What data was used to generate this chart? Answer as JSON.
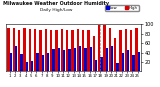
{
  "title": "Milwaukee Weather Outdoor Humidity",
  "subtitle": "Daily High/Low",
  "legend_labels": [
    "High",
    "Low"
  ],
  "bar_color_high": "#dd0000",
  "bar_color_low": "#0000cc",
  "background_color": "#ffffff",
  "ylim": [
    0,
    100
  ],
  "dashed_line_index": 17,
  "days": [
    "1",
    "2",
    "3",
    "4",
    "5",
    "6",
    "7",
    "8",
    "9",
    "10",
    "11",
    "12",
    "13",
    "14",
    "15",
    "16",
    "17",
    "18",
    "19",
    "20",
    "21",
    "22",
    "23",
    "24",
    "25"
  ],
  "highs": [
    93,
    93,
    87,
    93,
    90,
    90,
    87,
    90,
    87,
    87,
    90,
    87,
    87,
    90,
    87,
    87,
    75,
    99,
    99,
    93,
    72,
    87,
    90,
    87,
    93
  ],
  "lows": [
    38,
    55,
    36,
    20,
    22,
    40,
    35,
    40,
    48,
    50,
    45,
    48,
    50,
    55,
    50,
    52,
    25,
    30,
    50,
    55,
    18,
    38,
    45,
    35,
    42
  ]
}
